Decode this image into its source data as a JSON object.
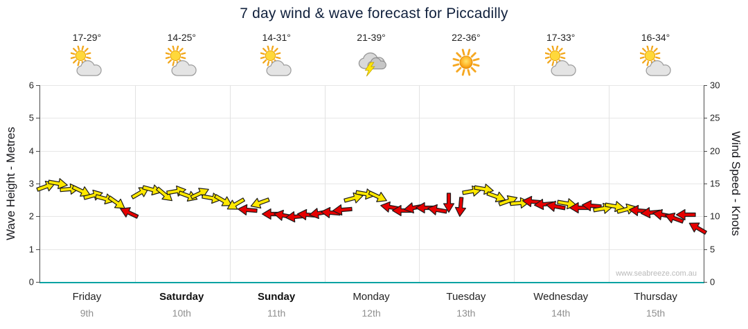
{
  "title": "7 day wind & wave forecast for Piccadilly",
  "watermark": "www.seabreeze.com.au",
  "colors": {
    "arrow_yellow": "#FFE800",
    "arrow_red": "#E60000",
    "arrow_outline": "#1a1a1a",
    "axis_teal": "#00A3A3",
    "date_gray": "#8f8f8f",
    "title_color": "#10203c"
  },
  "axes": {
    "left_label": "Wave Height - Metres",
    "right_label": "Wind Speed - Knots",
    "left_ticks": [
      0,
      1,
      2,
      3,
      4,
      5,
      6
    ],
    "right_ticks": [
      0,
      5,
      10,
      15,
      20,
      25,
      30
    ],
    "left_max": 6,
    "right_max": 30
  },
  "days": [
    {
      "name": "Friday",
      "date": "9th",
      "temp": "17-29°",
      "icon": "partly-cloudy",
      "bold": false
    },
    {
      "name": "Saturday",
      "date": "10th",
      "temp": "14-25°",
      "icon": "partly-cloudy",
      "bold": true
    },
    {
      "name": "Sunday",
      "date": "11th",
      "temp": "14-31°",
      "icon": "partly-cloudy",
      "bold": true
    },
    {
      "name": "Monday",
      "date": "12th",
      "temp": "21-39°",
      "icon": "thunderstorm",
      "bold": false
    },
    {
      "name": "Tuesday",
      "date": "13th",
      "temp": "22-36°",
      "icon": "sunny",
      "bold": false
    },
    {
      "name": "Wednesday",
      "date": "14th",
      "temp": "17-33°",
      "icon": "partly-cloudy",
      "bold": false
    },
    {
      "name": "Thursday",
      "date": "15th",
      "temp": "16-34°",
      "icon": "partly-cloudy",
      "bold": false
    }
  ],
  "chart_data": {
    "type": "scatter",
    "title": "7 day wind & wave forecast for Piccadilly",
    "x_categories": [
      "Friday 9th",
      "Saturday 10th",
      "Sunday 11th",
      "Monday 12th",
      "Tuesday 13th",
      "Wednesday 14th",
      "Thursday 15th"
    ],
    "y_left": {
      "label": "Wave Height - Metres",
      "range": [
        0,
        6
      ]
    },
    "y_right": {
      "label": "Wind Speed - Knots",
      "range": [
        0,
        30
      ]
    },
    "points_per_day": 8,
    "wind_points": [
      {
        "knots": 14.6,
        "dir": -20,
        "color": "yellow"
      },
      {
        "knots": 15.0,
        "dir": 10,
        "color": "yellow"
      },
      {
        "knots": 14.2,
        "dir": -5,
        "color": "yellow"
      },
      {
        "knots": 13.8,
        "dir": 25,
        "color": "yellow"
      },
      {
        "knots": 13.2,
        "dir": -15,
        "color": "yellow"
      },
      {
        "knots": 12.7,
        "dir": 15,
        "color": "yellow"
      },
      {
        "knots": 12.0,
        "dir": 35,
        "color": "yellow"
      },
      {
        "knots": 10.6,
        "dir": 205,
        "color": "red"
      },
      {
        "knots": 13.6,
        "dir": -30,
        "color": "yellow"
      },
      {
        "knots": 14.0,
        "dir": 15,
        "color": "yellow"
      },
      {
        "knots": 13.3,
        "dir": 40,
        "color": "yellow"
      },
      {
        "knots": 13.8,
        "dir": -10,
        "color": "yellow"
      },
      {
        "knots": 13.1,
        "dir": 20,
        "color": "yellow"
      },
      {
        "knots": 13.5,
        "dir": -25,
        "color": "yellow"
      },
      {
        "knots": 12.8,
        "dir": 10,
        "color": "yellow"
      },
      {
        "knots": 12.4,
        "dir": 30,
        "color": "yellow"
      },
      {
        "knots": 11.8,
        "dir": 150,
        "color": "yellow"
      },
      {
        "knots": 11.0,
        "dir": 185,
        "color": "red"
      },
      {
        "knots": 12.0,
        "dir": 160,
        "color": "yellow"
      },
      {
        "knots": 10.4,
        "dir": 180,
        "color": "red"
      },
      {
        "knots": 10.1,
        "dir": 190,
        "color": "red"
      },
      {
        "knots": 9.9,
        "dir": 175,
        "color": "red"
      },
      {
        "knots": 10.2,
        "dir": 185,
        "color": "red"
      },
      {
        "knots": 10.5,
        "dir": 170,
        "color": "red"
      },
      {
        "knots": 10.6,
        "dir": 185,
        "color": "red"
      },
      {
        "knots": 11.0,
        "dir": 175,
        "color": "red"
      },
      {
        "knots": 12.8,
        "dir": -15,
        "color": "yellow"
      },
      {
        "knots": 13.4,
        "dir": 10,
        "color": "yellow"
      },
      {
        "knots": 13.0,
        "dir": 25,
        "color": "yellow"
      },
      {
        "knots": 11.4,
        "dir": 190,
        "color": "red"
      },
      {
        "knots": 10.9,
        "dir": 180,
        "color": "red"
      },
      {
        "knots": 11.3,
        "dir": 170,
        "color": "red"
      },
      {
        "knots": 11.3,
        "dir": 180,
        "color": "red"
      },
      {
        "knots": 11.0,
        "dir": 190,
        "color": "red"
      },
      {
        "knots": 12.0,
        "dir": 90,
        "color": "red"
      },
      {
        "knots": 11.4,
        "dir": 95,
        "color": "red"
      },
      {
        "knots": 13.8,
        "dir": -10,
        "color": "yellow"
      },
      {
        "knots": 14.2,
        "dir": 10,
        "color": "yellow"
      },
      {
        "knots": 13.0,
        "dir": 20,
        "color": "yellow"
      },
      {
        "knots": 12.4,
        "dir": -20,
        "color": "yellow"
      },
      {
        "knots": 12.0,
        "dir": -5,
        "color": "yellow"
      },
      {
        "knots": 12.2,
        "dir": 185,
        "color": "red"
      },
      {
        "knots": 11.8,
        "dir": 175,
        "color": "red"
      },
      {
        "knots": 11.5,
        "dir": 190,
        "color": "red"
      },
      {
        "knots": 11.9,
        "dir": 10,
        "color": "yellow"
      },
      {
        "knots": 11.3,
        "dir": 180,
        "color": "red"
      },
      {
        "knots": 11.6,
        "dir": 185,
        "color": "red"
      },
      {
        "knots": 11.2,
        "dir": -10,
        "color": "yellow"
      },
      {
        "knots": 11.5,
        "dir": 10,
        "color": "yellow"
      },
      {
        "knots": 11.1,
        "dir": -15,
        "color": "yellow"
      },
      {
        "knots": 10.9,
        "dir": 185,
        "color": "red"
      },
      {
        "knots": 10.6,
        "dir": 175,
        "color": "red"
      },
      {
        "knots": 10.3,
        "dir": 190,
        "color": "red"
      },
      {
        "knots": 9.7,
        "dir": 200,
        "color": "red"
      },
      {
        "knots": 10.3,
        "dir": 180,
        "color": "red"
      },
      {
        "knots": 8.2,
        "dir": 210,
        "color": "red"
      }
    ]
  }
}
